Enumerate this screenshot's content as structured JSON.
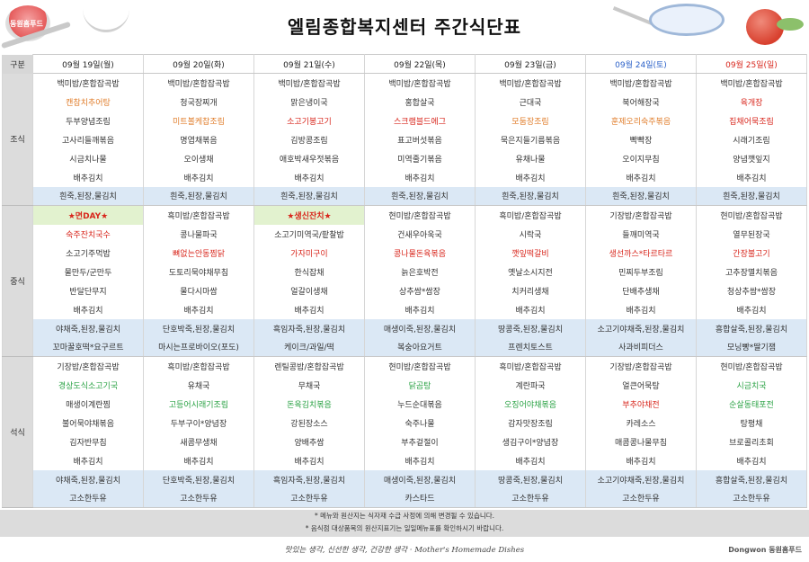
{
  "header": {
    "title": "엘림종합복지센터 주간식단표",
    "logo_text": "동원홈푸드"
  },
  "table": {
    "corner_label": "구분",
    "days": [
      "09월 19일(월)",
      "09월 20일(화)",
      "09월 21일(수)",
      "09월 22일(목)",
      "09월 23일(금)",
      "09월 24일(토)",
      "09월 25일(일)"
    ],
    "meals": [
      {
        "label": "조식",
        "rows": [
          [
            "백미밥/혼합잡곡밥",
            "백미밥/혼합잡곡밥",
            "백미밥/혼합잡곡밥",
            "백미밥/혼합잡곡밥",
            "백미밥/혼합잡곡밥",
            "백미밥/혼합잡곡밥",
            "백미밥/혼합잡곡밥"
          ],
          [
            "캔참치추어탕",
            "청국장찌개",
            "맑은냉이국",
            "홍합살국",
            "근대국",
            "북어해장국",
            "육개장"
          ],
          [
            "두부양념조림",
            "미트볼케찹조림",
            "소고기봉고기",
            "스크램블드에그",
            "모둠장조림",
            "훈제오리숙주볶음",
            "집채어묵조림"
          ],
          [
            "고사리들깨볶음",
            "명엽채볶음",
            "김방콩조림",
            "표고버섯볶음",
            "묵은지들기름볶음",
            "빡빡장",
            "시래기조림"
          ],
          [
            "시금치나물",
            "오이생채",
            "애호박새우젓볶음",
            "미역줄기볶음",
            "유채나물",
            "오이지무침",
            "양념깻잎지"
          ],
          [
            "배추김치",
            "배추김치",
            "배추김치",
            "배추김치",
            "배추김치",
            "배추김치",
            "배추김치"
          ]
        ],
        "sub_rows": [
          [
            "흰죽,된장,물김치",
            "흰죽,된장,물김치",
            "흰죽,된장,물김치",
            "흰죽,된장,물김치",
            "흰죽,된장,물김치",
            "흰죽,된장,물김치",
            "흰죽,된장,물김치"
          ]
        ]
      },
      {
        "label": "중식",
        "rows": [
          [
            "★면DAY★",
            "흑미밥/혼합잡곡밥",
            "★생신잔치★",
            "현미밥/혼합잡곡밥",
            "흑미밥/혼합잡곡밥",
            "기장밥/혼합잡곡밥",
            "현미밥/혼합잡곡밥"
          ],
          [
            "숙주잔치국수",
            "콩나물파국",
            "소고기미역국/팥찰밥",
            "건새우아욱국",
            "시락국",
            "들깨미역국",
            "열무된장국"
          ],
          [
            "소고기주먹밥",
            "뼈없는안동찜닭",
            "가자미구이",
            "콩나물돈육볶음",
            "깻잎떡갈비",
            "생선까스*타르타르",
            "간장불고기"
          ],
          [
            "물만두/군만두",
            "도토리묵야채무침",
            "한식잡채",
            "늙은호박전",
            "옛날소시지전",
            "민찌두부조림",
            "고추장멸치볶음"
          ],
          [
            "반달단무지",
            "물다시마쌈",
            "얼갈이생채",
            "상추쌈*쌈장",
            "치커리생채",
            "단배추생채",
            "청상추쌈*쌈장"
          ],
          [
            "배추김치",
            "배추김치",
            "배추김치",
            "배추김치",
            "배추김치",
            "배추김치",
            "배추김치"
          ]
        ],
        "sub_rows": [
          [
            "야채죽,된장,물김치",
            "단호박죽,된장,물김치",
            "흑임자죽,된장,물김치",
            "매생이죽,된장,물김치",
            "땅콩죽,된장,물김치",
            "소고기야채죽,된장,물김치",
            "흥합살죽,된장,물김치"
          ],
          [
            "꼬마꿀호떡*요구르트",
            "마시는프로바이오(포도)",
            "케이크/과일/떡",
            "복숭아요거트",
            "프렌치토스트",
            "사과비피더스",
            "모닝빵*딸기잼"
          ]
        ]
      },
      {
        "label": "석식",
        "rows": [
          [
            "기장밥/혼합잡곡밥",
            "흑미밥/혼합잡곡밥",
            "렌틸콩밥/혼합잡곡밥",
            "현미밥/혼합잡곡밥",
            "흑미밥/혼합잡곡밥",
            "기장밥/혼합잡곡밥",
            "현미밥/혼합잡곡밥"
          ],
          [
            "경상도식소고기국",
            "유채국",
            "무채국",
            "닭곰탕",
            "계란파국",
            "얼큰어묵탕",
            "시금치국"
          ],
          [
            "매생이계란찜",
            "고등어시래기조림",
            "돈육김치볶음",
            "누드순대볶음",
            "오징어야채볶음",
            "부추야채전",
            "순살동태포전"
          ],
          [
            "불어묵야채볶음",
            "두부구이*양념장",
            "강된장소스",
            "숙주나물",
            "감자맛장조림",
            "카레소스",
            "탕평채"
          ],
          [
            "김자반무침",
            "새콤무생채",
            "양배추쌈",
            "부추겉절이",
            "생김구이*양념장",
            "매콤콩나물무침",
            "브로콜리초회"
          ],
          [
            "배추김치",
            "배추김치",
            "배추김치",
            "배추김치",
            "배추김치",
            "배추김치",
            "배추김치"
          ]
        ],
        "sub_rows": [
          [
            "야채죽,된장,물김치",
            "단호박죽,된장,물김치",
            "흑임자죽,된장,물김치",
            "매생이죽,된장,물김치",
            "땅콩죽,된장,물김치",
            "소고기야채죽,된장,물김치",
            "흥합살죽,된장,물김치"
          ],
          [
            "고소한두유",
            "고소한두유",
            "고소한두유",
            "카스타드",
            "고소한두유",
            "고소한두유",
            "고소한두유"
          ]
        ]
      }
    ]
  },
  "notes": [
    "* 메뉴와 원산지는 식자재 수급 사정에 의해 변경될 수 있습니다.",
    "* 음식점 대상품목의 원산지표기는 일일메뉴표를 확인하시기 바랍니다."
  ],
  "footer": {
    "slogan": "맛있는 생각, 신선한 생각, 건강한 생각  ·  Mother's Homemade Dishes",
    "brand": "Dongwon 동원홈푸드"
  },
  "colors": {
    "saturday": "#2a60c8",
    "sunday": "#d8261c",
    "orange_item": "#e07d2b",
    "red_item": "#d8261c",
    "green_item": "#2aa244",
    "sub_row_bg": "#dbe8f5",
    "meal_label_bg": "#dcdcdc"
  }
}
